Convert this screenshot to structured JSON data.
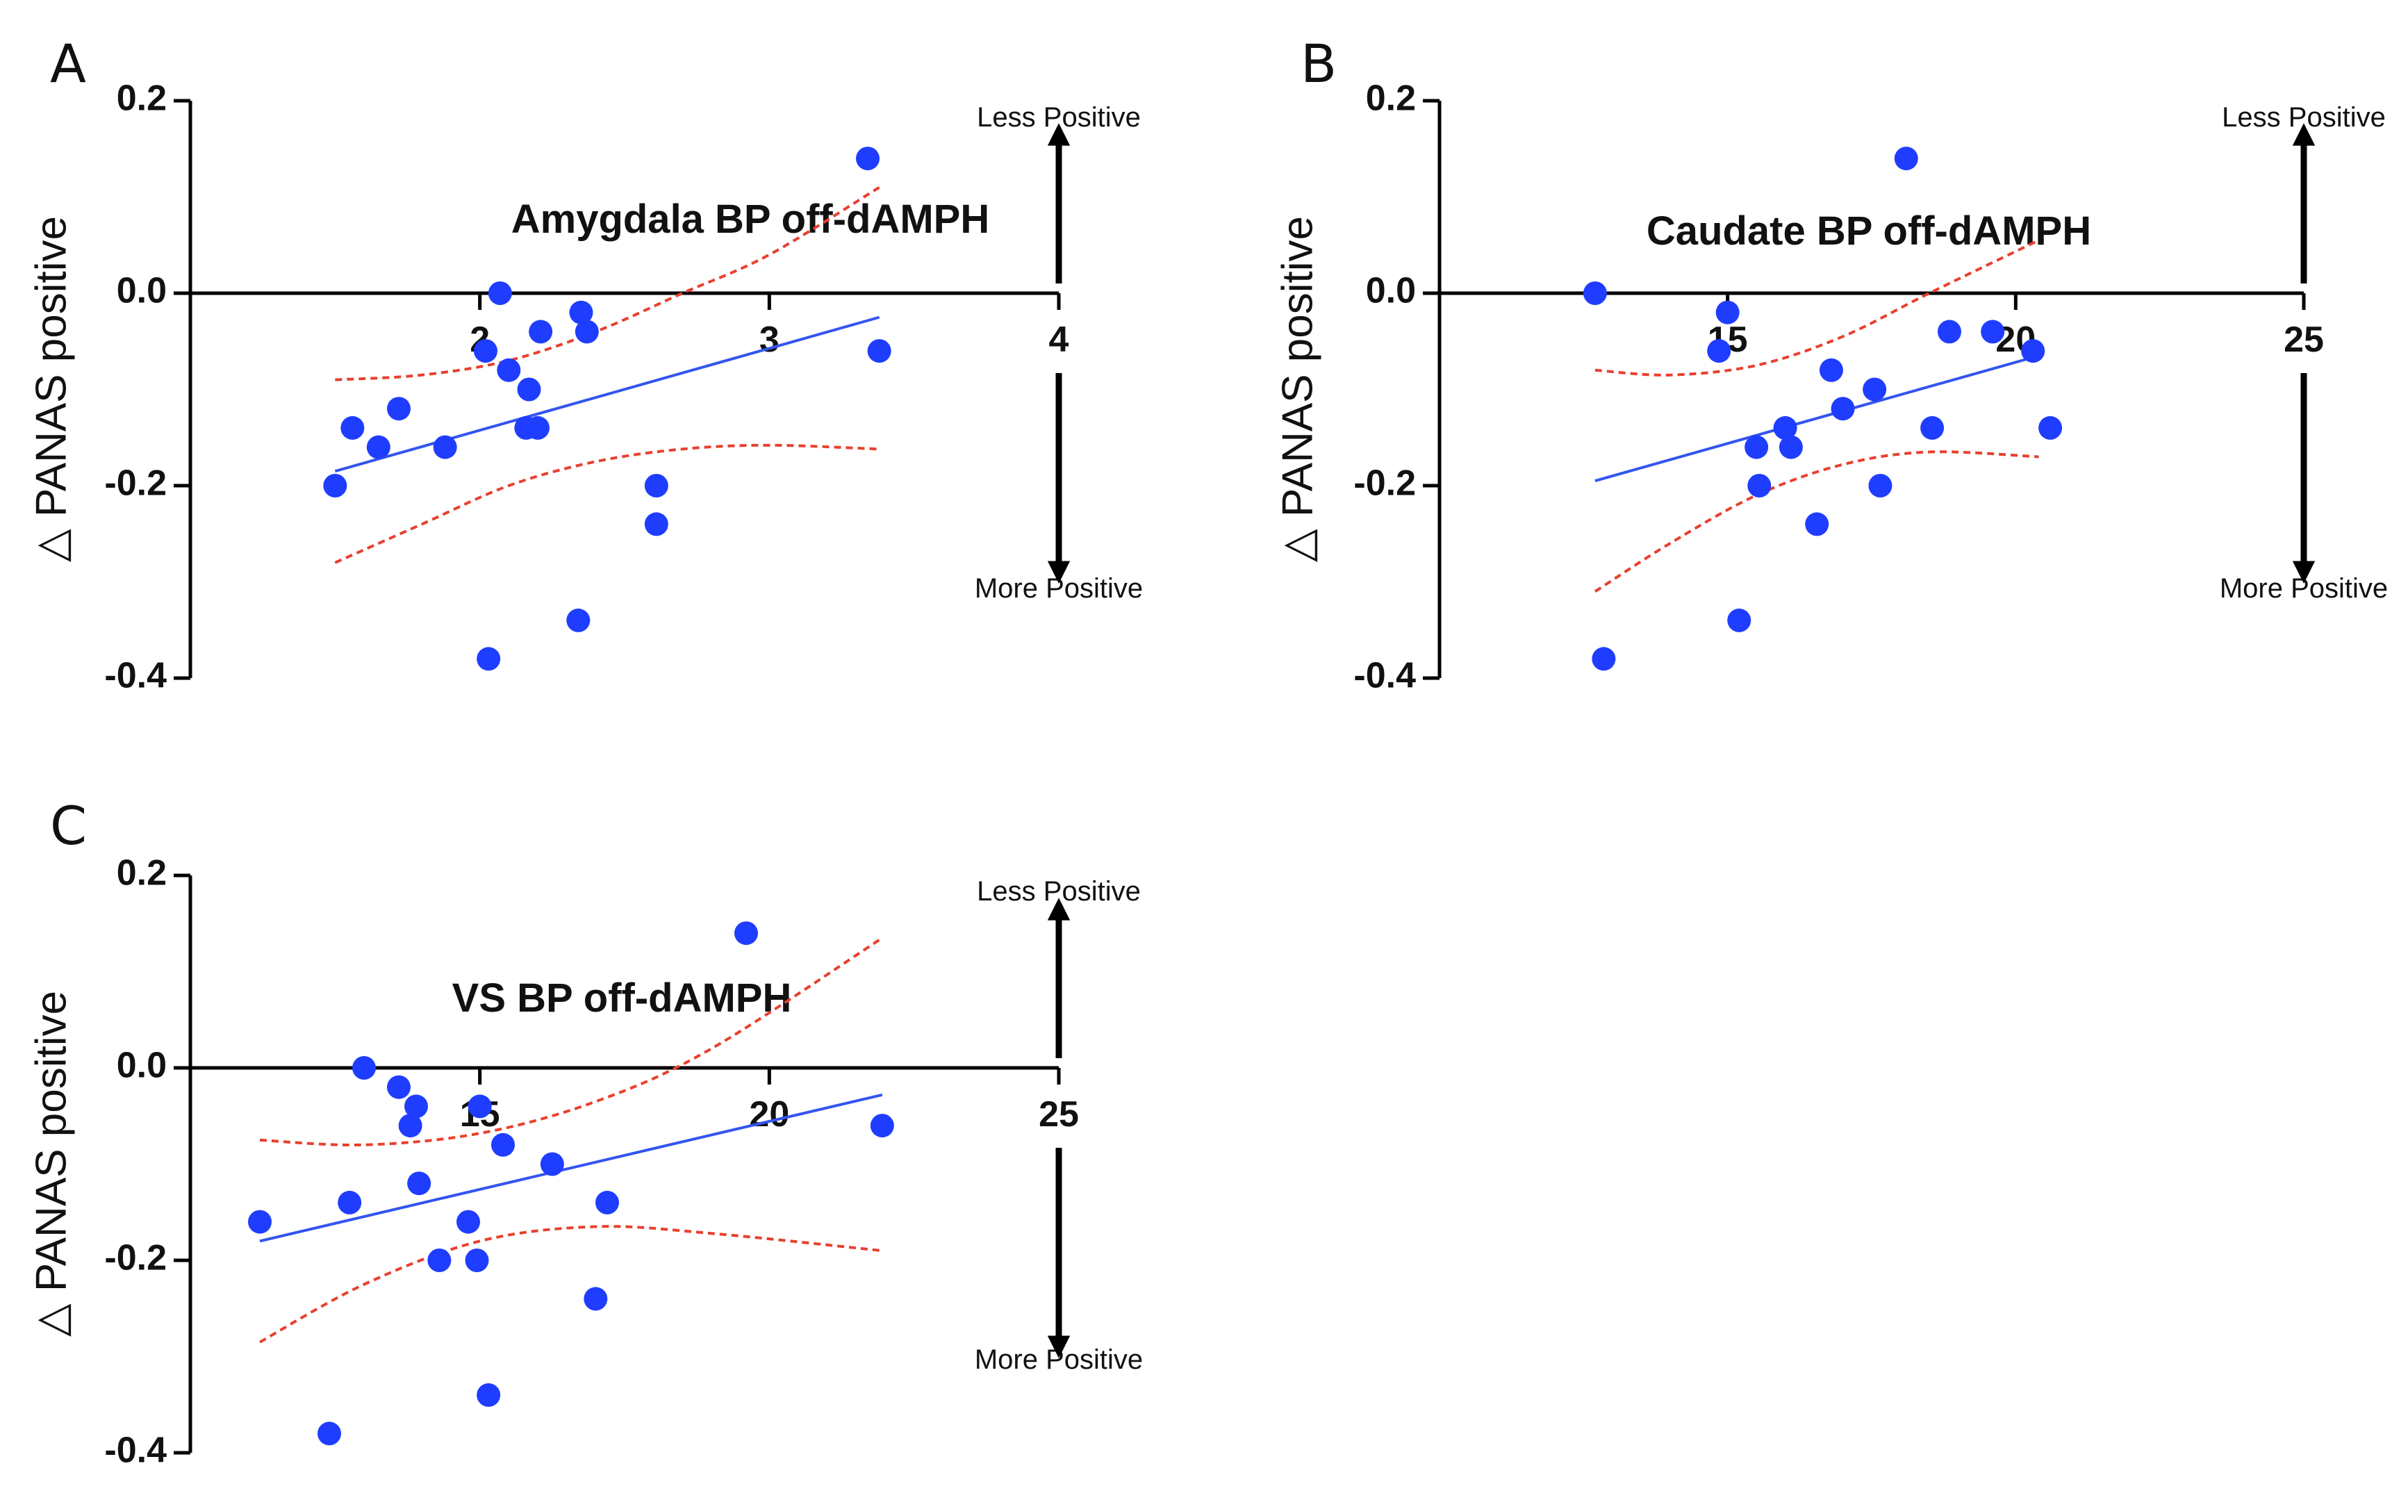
{
  "colors": {
    "points": "#1f3dff",
    "fit": "#3355ee",
    "ci": "#e8402f",
    "axis": "#000000"
  },
  "chart_data": [
    {
      "type": "scatter",
      "panel_label": "A",
      "title": "Amygdala BP off-dAMPH",
      "ylabel": "△ PANAS positive",
      "arrow_up_label": "Less Positive",
      "arrow_down_label": "More Positive",
      "xlim": [
        1,
        4
      ],
      "ylim": [
        -0.4,
        0.2
      ],
      "xticks": [
        "2",
        "3",
        "4"
      ],
      "yticks": [
        "0.2",
        "0.0",
        "-0.2",
        "-0.4"
      ],
      "points": [
        {
          "x": 1.5,
          "y": -0.2
        },
        {
          "x": 1.56,
          "y": -0.14
        },
        {
          "x": 1.65,
          "y": -0.16
        },
        {
          "x": 1.72,
          "y": -0.12
        },
        {
          "x": 1.88,
          "y": -0.16
        },
        {
          "x": 2.02,
          "y": -0.06
        },
        {
          "x": 2.03,
          "y": -0.38
        },
        {
          "x": 2.07,
          "y": 0.0
        },
        {
          "x": 2.1,
          "y": -0.08
        },
        {
          "x": 2.16,
          "y": -0.14
        },
        {
          "x": 2.17,
          "y": -0.1
        },
        {
          "x": 2.2,
          "y": -0.14
        },
        {
          "x": 2.21,
          "y": -0.04
        },
        {
          "x": 2.34,
          "y": -0.34
        },
        {
          "x": 2.35,
          "y": -0.02
        },
        {
          "x": 2.37,
          "y": -0.04
        },
        {
          "x": 2.61,
          "y": -0.2
        },
        {
          "x": 2.61,
          "y": -0.24
        },
        {
          "x": 3.34,
          "y": 0.14
        },
        {
          "x": 3.38,
          "y": -0.06
        }
      ],
      "fit": {
        "x": [
          1.5,
          3.38
        ],
        "y": [
          -0.185,
          -0.025
        ]
      },
      "ci_upper": [
        [
          1.5,
          -0.09
        ],
        [
          1.8,
          -0.085
        ],
        [
          2.1,
          -0.07
        ],
        [
          2.4,
          -0.04
        ],
        [
          2.7,
          0.0
        ],
        [
          3.0,
          0.04
        ],
        [
          3.38,
          0.11
        ]
      ],
      "ci_lower": [
        [
          1.5,
          -0.28
        ],
        [
          1.8,
          -0.24
        ],
        [
          2.1,
          -0.2
        ],
        [
          2.4,
          -0.175
        ],
        [
          2.7,
          -0.162
        ],
        [
          3.0,
          -0.158
        ],
        [
          3.38,
          -0.162
        ]
      ]
    },
    {
      "type": "scatter",
      "panel_label": "B",
      "title": "Caudate BP off-dAMPH",
      "ylabel": "△ PANAS positive",
      "arrow_up_label": "Less Positive",
      "arrow_down_label": "More Positive",
      "xlim": [
        10,
        25
      ],
      "ylim": [
        -0.4,
        0.2
      ],
      "xticks": [
        "15",
        "20",
        "25"
      ],
      "yticks": [
        "0.2",
        "0.0",
        "-0.2",
        "-0.4"
      ],
      "points": [
        {
          "x": 12.7,
          "y": 0.0
        },
        {
          "x": 12.85,
          "y": -0.38
        },
        {
          "x": 14.85,
          "y": -0.06
        },
        {
          "x": 15.0,
          "y": -0.02
        },
        {
          "x": 15.2,
          "y": -0.34
        },
        {
          "x": 15.5,
          "y": -0.16
        },
        {
          "x": 15.55,
          "y": -0.2
        },
        {
          "x": 16.0,
          "y": -0.14
        },
        {
          "x": 16.1,
          "y": -0.16
        },
        {
          "x": 16.55,
          "y": -0.24
        },
        {
          "x": 16.8,
          "y": -0.08
        },
        {
          "x": 17.0,
          "y": -0.12
        },
        {
          "x": 17.55,
          "y": -0.1
        },
        {
          "x": 17.65,
          "y": -0.2
        },
        {
          "x": 18.1,
          "y": 0.14
        },
        {
          "x": 18.55,
          "y": -0.14
        },
        {
          "x": 18.85,
          "y": -0.04
        },
        {
          "x": 19.6,
          "y": -0.04
        },
        {
          "x": 20.3,
          "y": -0.06
        },
        {
          "x": 20.6,
          "y": -0.14
        }
      ],
      "fit": {
        "x": [
          12.7,
          20.4
        ],
        "y": [
          -0.195,
          -0.065
        ]
      },
      "ci_upper": [
        [
          12.7,
          -0.08
        ],
        [
          14.0,
          -0.085
        ],
        [
          15.5,
          -0.075
        ],
        [
          17.0,
          -0.045
        ],
        [
          18.5,
          0.0
        ],
        [
          20.4,
          0.055
        ]
      ],
      "ci_lower": [
        [
          12.7,
          -0.31
        ],
        [
          14.0,
          -0.26
        ],
        [
          15.5,
          -0.21
        ],
        [
          17.0,
          -0.178
        ],
        [
          18.5,
          -0.165
        ],
        [
          20.4,
          -0.17
        ]
      ]
    },
    {
      "type": "scatter",
      "panel_label": "C",
      "title": "VS BP off-dAMPH",
      "ylabel": "△ PANAS positive",
      "arrow_up_label": "Less Positive",
      "arrow_down_label": "More Positive",
      "xlim": [
        10,
        25
      ],
      "ylim": [
        -0.4,
        0.2
      ],
      "xticks": [
        "15",
        "20",
        "25"
      ],
      "yticks": [
        "0.2",
        "0.0",
        "-0.2",
        "-0.4"
      ],
      "points": [
        {
          "x": 11.2,
          "y": -0.16
        },
        {
          "x": 12.4,
          "y": -0.38
        },
        {
          "x": 12.75,
          "y": -0.14
        },
        {
          "x": 13.0,
          "y": 0.0
        },
        {
          "x": 13.6,
          "y": -0.02
        },
        {
          "x": 13.8,
          "y": -0.06
        },
        {
          "x": 13.9,
          "y": -0.04
        },
        {
          "x": 13.95,
          "y": -0.12
        },
        {
          "x": 14.3,
          "y": -0.2
        },
        {
          "x": 14.8,
          "y": -0.16
        },
        {
          "x": 14.95,
          "y": -0.2
        },
        {
          "x": 15.0,
          "y": -0.04
        },
        {
          "x": 15.15,
          "y": -0.34
        },
        {
          "x": 15.4,
          "y": -0.08
        },
        {
          "x": 16.25,
          "y": -0.1
        },
        {
          "x": 17.0,
          "y": -0.24
        },
        {
          "x": 17.2,
          "y": -0.14
        },
        {
          "x": 19.6,
          "y": 0.14
        },
        {
          "x": 21.95,
          "y": -0.06
        }
      ],
      "fit": {
        "x": [
          11.2,
          21.95
        ],
        "y": [
          -0.18,
          -0.028
        ]
      },
      "ci_upper": [
        [
          11.2,
          -0.075
        ],
        [
          13.0,
          -0.08
        ],
        [
          15.0,
          -0.068
        ],
        [
          17.0,
          -0.035
        ],
        [
          19.0,
          0.02
        ],
        [
          21.95,
          0.135
        ]
      ],
      "ci_lower": [
        [
          11.2,
          -0.285
        ],
        [
          13.0,
          -0.225
        ],
        [
          15.0,
          -0.18
        ],
        [
          17.0,
          -0.165
        ],
        [
          19.0,
          -0.172
        ],
        [
          21.95,
          -0.19
        ]
      ]
    }
  ]
}
